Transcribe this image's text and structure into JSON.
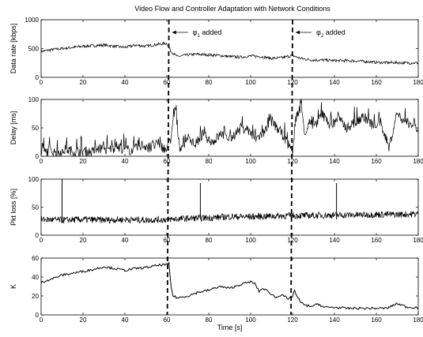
{
  "chart_data": [
    {
      "type": "line",
      "title": "Video Flow and Controller Adaptation with Network Conditions",
      "xlabel": "",
      "ylabel": "Data rate [kbps]",
      "xlim": [
        0,
        180
      ],
      "ylim": [
        0,
        1000
      ],
      "xticks": [
        0,
        20,
        40,
        60,
        80,
        100,
        120,
        140,
        160,
        180
      ],
      "yticks": [
        0,
        500,
        1000
      ],
      "x": [
        0,
        5,
        10,
        15,
        20,
        25,
        30,
        35,
        40,
        45,
        50,
        55,
        60,
        62,
        65,
        70,
        75,
        80,
        85,
        90,
        95,
        100,
        105,
        110,
        115,
        120,
        122,
        125,
        130,
        135,
        140,
        145,
        150,
        155,
        160,
        165,
        170,
        175,
        180
      ],
      "values": [
        450,
        480,
        500,
        520,
        540,
        550,
        560,
        540,
        520,
        560,
        540,
        570,
        590,
        450,
        360,
        390,
        400,
        390,
        380,
        360,
        350,
        370,
        360,
        330,
        340,
        380,
        350,
        320,
        300,
        300,
        290,
        290,
        285,
        275,
        260,
        255,
        255,
        250,
        250
      ],
      "annotations": [
        {
          "x": 61,
          "text_main": "φ",
          "text_sub": "1",
          "text_rest": " added"
        },
        {
          "x": 120,
          "text_main": "φ",
          "text_sub": "2",
          "text_rest": " added"
        }
      ]
    },
    {
      "type": "line",
      "title": "",
      "xlabel": "",
      "ylabel": "Delay [ms]",
      "xlim": [
        0,
        180
      ],
      "ylim": [
        0,
        100
      ],
      "xticks": [
        0,
        20,
        40,
        60,
        80,
        100,
        120,
        140,
        160,
        180
      ],
      "yticks": [
        0,
        50,
        100
      ],
      "x": [
        0,
        4,
        8,
        12,
        16,
        20,
        24,
        28,
        32,
        36,
        40,
        44,
        48,
        52,
        56,
        60,
        62,
        64,
        66,
        70,
        74,
        78,
        82,
        86,
        90,
        94,
        98,
        102,
        106,
        110,
        114,
        118,
        120,
        122,
        124,
        126,
        128,
        130,
        134,
        138,
        142,
        146,
        150,
        154,
        158,
        162,
        166,
        170,
        174,
        178,
        180
      ],
      "values": [
        5,
        10,
        6,
        12,
        8,
        10,
        7,
        14,
        10,
        18,
        12,
        10,
        20,
        15,
        22,
        10,
        30,
        88,
        15,
        30,
        20,
        35,
        25,
        40,
        30,
        45,
        50,
        30,
        40,
        60,
        45,
        20,
        10,
        70,
        90,
        40,
        60,
        50,
        75,
        55,
        65,
        50,
        60,
        70,
        55,
        60,
        15,
        75,
        60,
        55,
        50
      ]
    },
    {
      "type": "line",
      "title": "",
      "xlabel": "",
      "ylabel": "Pkt loss [%]",
      "xlim": [
        0,
        180
      ],
      "ylim": [
        0,
        100
      ],
      "xticks": [
        0,
        20,
        40,
        60,
        80,
        100,
        120,
        140,
        160,
        180
      ],
      "yticks": [
        0,
        50,
        100
      ],
      "x": [
        0,
        10,
        20,
        30,
        40,
        50,
        60,
        70,
        80,
        90,
        100,
        110,
        120,
        130,
        140,
        150,
        160,
        170,
        180
      ],
      "values": [
        28,
        27,
        28,
        27,
        28,
        27,
        28,
        30,
        31,
        33,
        33,
        34,
        35,
        35,
        36,
        36,
        37,
        37,
        38
      ],
      "spikes": [
        {
          "x": 10,
          "value": 100
        },
        {
          "x": 76,
          "value": 93
        },
        {
          "x": 141,
          "value": 93
        }
      ]
    },
    {
      "type": "line",
      "title": "",
      "xlabel": "Time [s]",
      "ylabel": "K",
      "xlim": [
        0,
        180
      ],
      "ylim": [
        0,
        60
      ],
      "xticks": [
        0,
        20,
        40,
        60,
        80,
        100,
        120,
        140,
        160,
        180
      ],
      "yticks": [
        0,
        20,
        40,
        60
      ],
      "x": [
        0,
        2,
        5,
        10,
        15,
        20,
        25,
        30,
        35,
        40,
        45,
        50,
        55,
        58,
        60,
        61,
        62,
        63,
        65,
        70,
        75,
        80,
        85,
        90,
        95,
        100,
        102,
        104,
        106,
        110,
        112,
        115,
        118,
        120,
        121,
        122,
        124,
        126,
        130,
        132,
        135,
        140,
        145,
        150,
        155,
        160,
        165,
        170,
        175,
        180
      ],
      "values": [
        34,
        36,
        38,
        42,
        44,
        46,
        48,
        51,
        49,
        47,
        49,
        50,
        52,
        53,
        53,
        54,
        30,
        20,
        18,
        20,
        24,
        26,
        30,
        28,
        32,
        35,
        33,
        25,
        28,
        22,
        18,
        22,
        16,
        20,
        26,
        20,
        13,
        10,
        9,
        12,
        8,
        8,
        7,
        7,
        7,
        7,
        7,
        12,
        8,
        8
      ]
    }
  ]
}
